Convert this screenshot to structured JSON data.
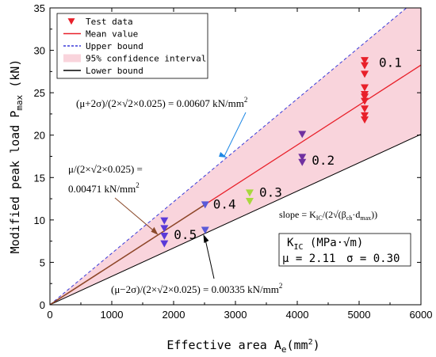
{
  "chart_data": {
    "type": "scatter",
    "xlabel": "Effective area A",
    "xlabel_sub": "e",
    "xlabel_unit": "(mm",
    "xlabel_unit_sup": "2",
    "xlabel_unit_close": ")",
    "ylabel": "Modified peak load P",
    "ylabel_sub": "max",
    "ylabel_unit": " (kN)",
    "xlim": [
      0,
      6000
    ],
    "ylim": [
      0,
      35
    ],
    "x_ticks": [
      "0",
      "1000",
      "2000",
      "3000",
      "4000",
      "5000",
      "6000"
    ],
    "y_ticks": [
      "0",
      "5",
      "10",
      "15",
      "20",
      "25",
      "30",
      "35"
    ],
    "x_tick_values": [
      0,
      1000,
      2000,
      3000,
      4000,
      5000,
      6000
    ],
    "y_tick_values": [
      0,
      5,
      10,
      15,
      20,
      25,
      30,
      35
    ],
    "grid": false,
    "legend_position": "top-left",
    "legend": [
      {
        "label": "Test data",
        "kind": "marker",
        "color": "#e8202a"
      },
      {
        "label": "Mean value",
        "kind": "line",
        "color": "#e8202a"
      },
      {
        "label": "Upper bound",
        "kind": "dash",
        "color": "#3a3ad8"
      },
      {
        "label": "95% confidence interval",
        "kind": "fill",
        "color": "#f9d4dc"
      },
      {
        "label": "Lower bound",
        "kind": "line",
        "color": "#000000"
      }
    ],
    "lines": {
      "mean_slope": 0.00471,
      "upper_slope": 0.00607,
      "lower_slope": 0.00335,
      "mean_color": "#e8202a",
      "upper_color": "#3a3ad8",
      "lower_color": "#000000",
      "band_color": "#f9d4dc",
      "brown_segment_color": "#8b4a2b",
      "brown_segment_x_end": 2500
    },
    "series": [
      {
        "name": "0.1",
        "color": "#e8202a",
        "x": 5090,
        "y": [
          21.8,
          22.3,
          23.1,
          24.0,
          24.5,
          24.8,
          25.6,
          27.2,
          28.2,
          28.8
        ]
      },
      {
        "name": "0.2",
        "color": "#7030a0",
        "x": 4080,
        "y": [
          16.8,
          17.4,
          20.1
        ]
      },
      {
        "name": "0.3",
        "color": "#a8d83c",
        "x": 3230,
        "y": [
          12.2,
          13.2
        ]
      },
      {
        "name": "0.4",
        "color": "#5a5ad8",
        "x": 2510,
        "y": [
          8.8,
          11.8
        ]
      },
      {
        "name": "0.5",
        "color": "#5a3ad8",
        "x": 1850,
        "y": [
          7.2,
          8.1,
          9.0,
          9.9
        ]
      }
    ],
    "annotations": {
      "upper": {
        "prefix": "(μ+2σ)/(2×√2×0.025) = 0.00607 kN/mm",
        "sup": "2",
        "arrow_color": "#1e88e5"
      },
      "mean_line1": "μ/(2×√2×0.025) =",
      "mean_line2": "0.00471 kN/mm",
      "mean_sup": "2",
      "mean_arrow_color": "#8b4a2b",
      "lower": {
        "prefix": "(μ−2σ)/(2×√2×0.025) = 0.00335 kN/mm",
        "sup": "2",
        "arrow_color": "#000000"
      },
      "slope": "slope = K",
      "slope_sub": "IC",
      "slope_rest": "/(2√(β",
      "slope_sub2": "ch",
      "slope_rest2": "·d",
      "slope_sub3": "max",
      "slope_rest3": "))"
    },
    "info_box": {
      "line1_a": "K",
      "line1_sub": "IC",
      "line1_b": " (MPa·√m)",
      "line2_mu": "μ = 2.11",
      "line2_sigma": "σ = 0.30"
    }
  }
}
